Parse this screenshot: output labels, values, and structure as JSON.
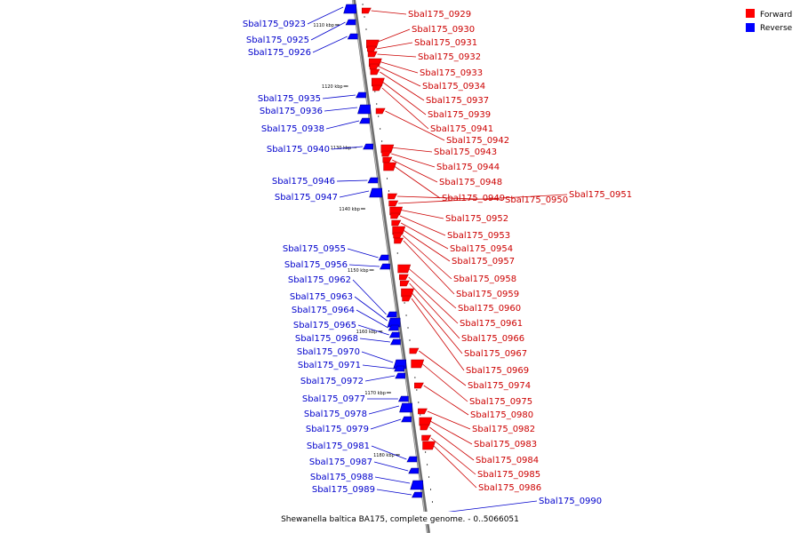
{
  "caption": "Shewanella baltica BA175, complete genome. - 0..5066051",
  "legend": {
    "forward_label": "Forward",
    "reverse_label": "Reverse",
    "forward_color": "#ff0000",
    "reverse_color": "#0000ff"
  },
  "ticks": [
    "1110 kbp",
    "1120 kbp",
    "1130 kbp",
    "1140 kbp",
    "1150 kbp",
    "1160 kbp",
    "1170 kbp",
    "1180 kbp"
  ],
  "forward_genes": [
    "Sbal175_0929",
    "Sbal175_0930",
    "Sbal175_0931",
    "Sbal175_0932",
    "Sbal175_0933",
    "Sbal175_0934",
    "Sbal175_0937",
    "Sbal175_0939",
    "Sbal175_0941",
    "Sbal175_0942",
    "Sbal175_0943",
    "Sbal175_0944",
    "Sbal175_0948",
    "Sbal175_0949",
    "Sbal175_0950",
    "Sbal175_0951",
    "Sbal175_0952",
    "Sbal175_0953",
    "Sbal175_0954",
    "Sbal175_0957",
    "Sbal175_0958",
    "Sbal175_0959",
    "Sbal175_0960",
    "Sbal175_0961",
    "Sbal175_0966",
    "Sbal175_0967",
    "Sbal175_0969",
    "Sbal175_0974",
    "Sbal175_0975",
    "Sbal175_0980",
    "Sbal175_0982",
    "Sbal175_0983",
    "Sbal175_0984",
    "Sbal175_0985",
    "Sbal175_0986"
  ],
  "reverse_genes": [
    "Sbal175_0923",
    "Sbal175_0925",
    "Sbal175_0926",
    "Sbal175_0935",
    "Sbal175_0936",
    "Sbal175_0938",
    "Sbal175_0940",
    "Sbal175_0946",
    "Sbal175_0947",
    "Sbal175_0955",
    "Sbal175_0956",
    "Sbal175_0962",
    "Sbal175_0963",
    "Sbal175_0964",
    "Sbal175_0965",
    "Sbal175_0968",
    "Sbal175_0970",
    "Sbal175_0971",
    "Sbal175_0972",
    "Sbal175_0977",
    "Sbal175_0978",
    "Sbal175_0979",
    "Sbal175_0981",
    "Sbal175_0987",
    "Sbal175_0988",
    "Sbal175_0989",
    "Sbal175_0990"
  ]
}
